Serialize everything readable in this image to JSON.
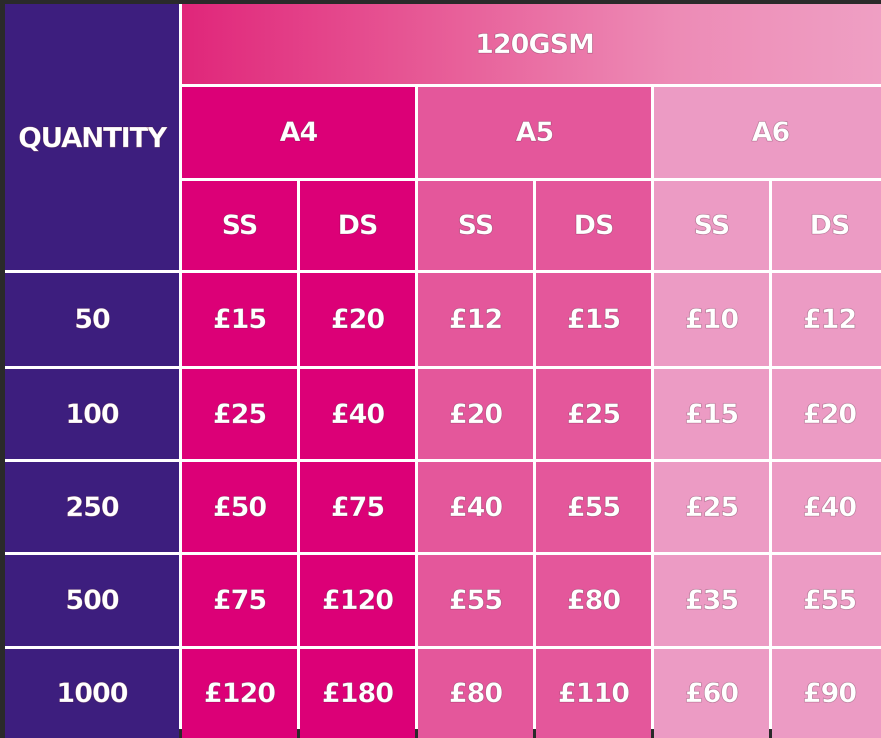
{
  "header": {
    "quantity_label": "QUANTITY",
    "stock_label": "120GSM",
    "sizes": [
      "A4",
      "A5",
      "A6"
    ],
    "sides": [
      "SS",
      "DS",
      "SS",
      "DS",
      "SS",
      "DS"
    ]
  },
  "rows": [
    {
      "qty": "50",
      "prices": [
        "£15",
        "£20",
        "£12",
        "£15",
        "£10",
        "£12"
      ]
    },
    {
      "qty": "100",
      "prices": [
        "£25",
        "£40",
        "£20",
        "£25",
        "£15",
        "£20"
      ]
    },
    {
      "qty": "250",
      "prices": [
        "£50",
        "£75",
        "£40",
        "£55",
        "£25",
        "£40"
      ]
    },
    {
      "qty": "500",
      "prices": [
        "£75",
        "£120",
        "£55",
        "£80",
        "£35",
        "£55"
      ]
    },
    {
      "qty": "1000",
      "prices": [
        "£120",
        "£180",
        "£80",
        "£110",
        "£60",
        "£90"
      ]
    }
  ],
  "colors": {
    "quantity_bg": "#3d1e7e",
    "a4_bg": "#dc0077",
    "a5_bg": "#e4579b",
    "a6_bg": "#ec9bc4",
    "grid_lines": "#ffffff"
  }
}
